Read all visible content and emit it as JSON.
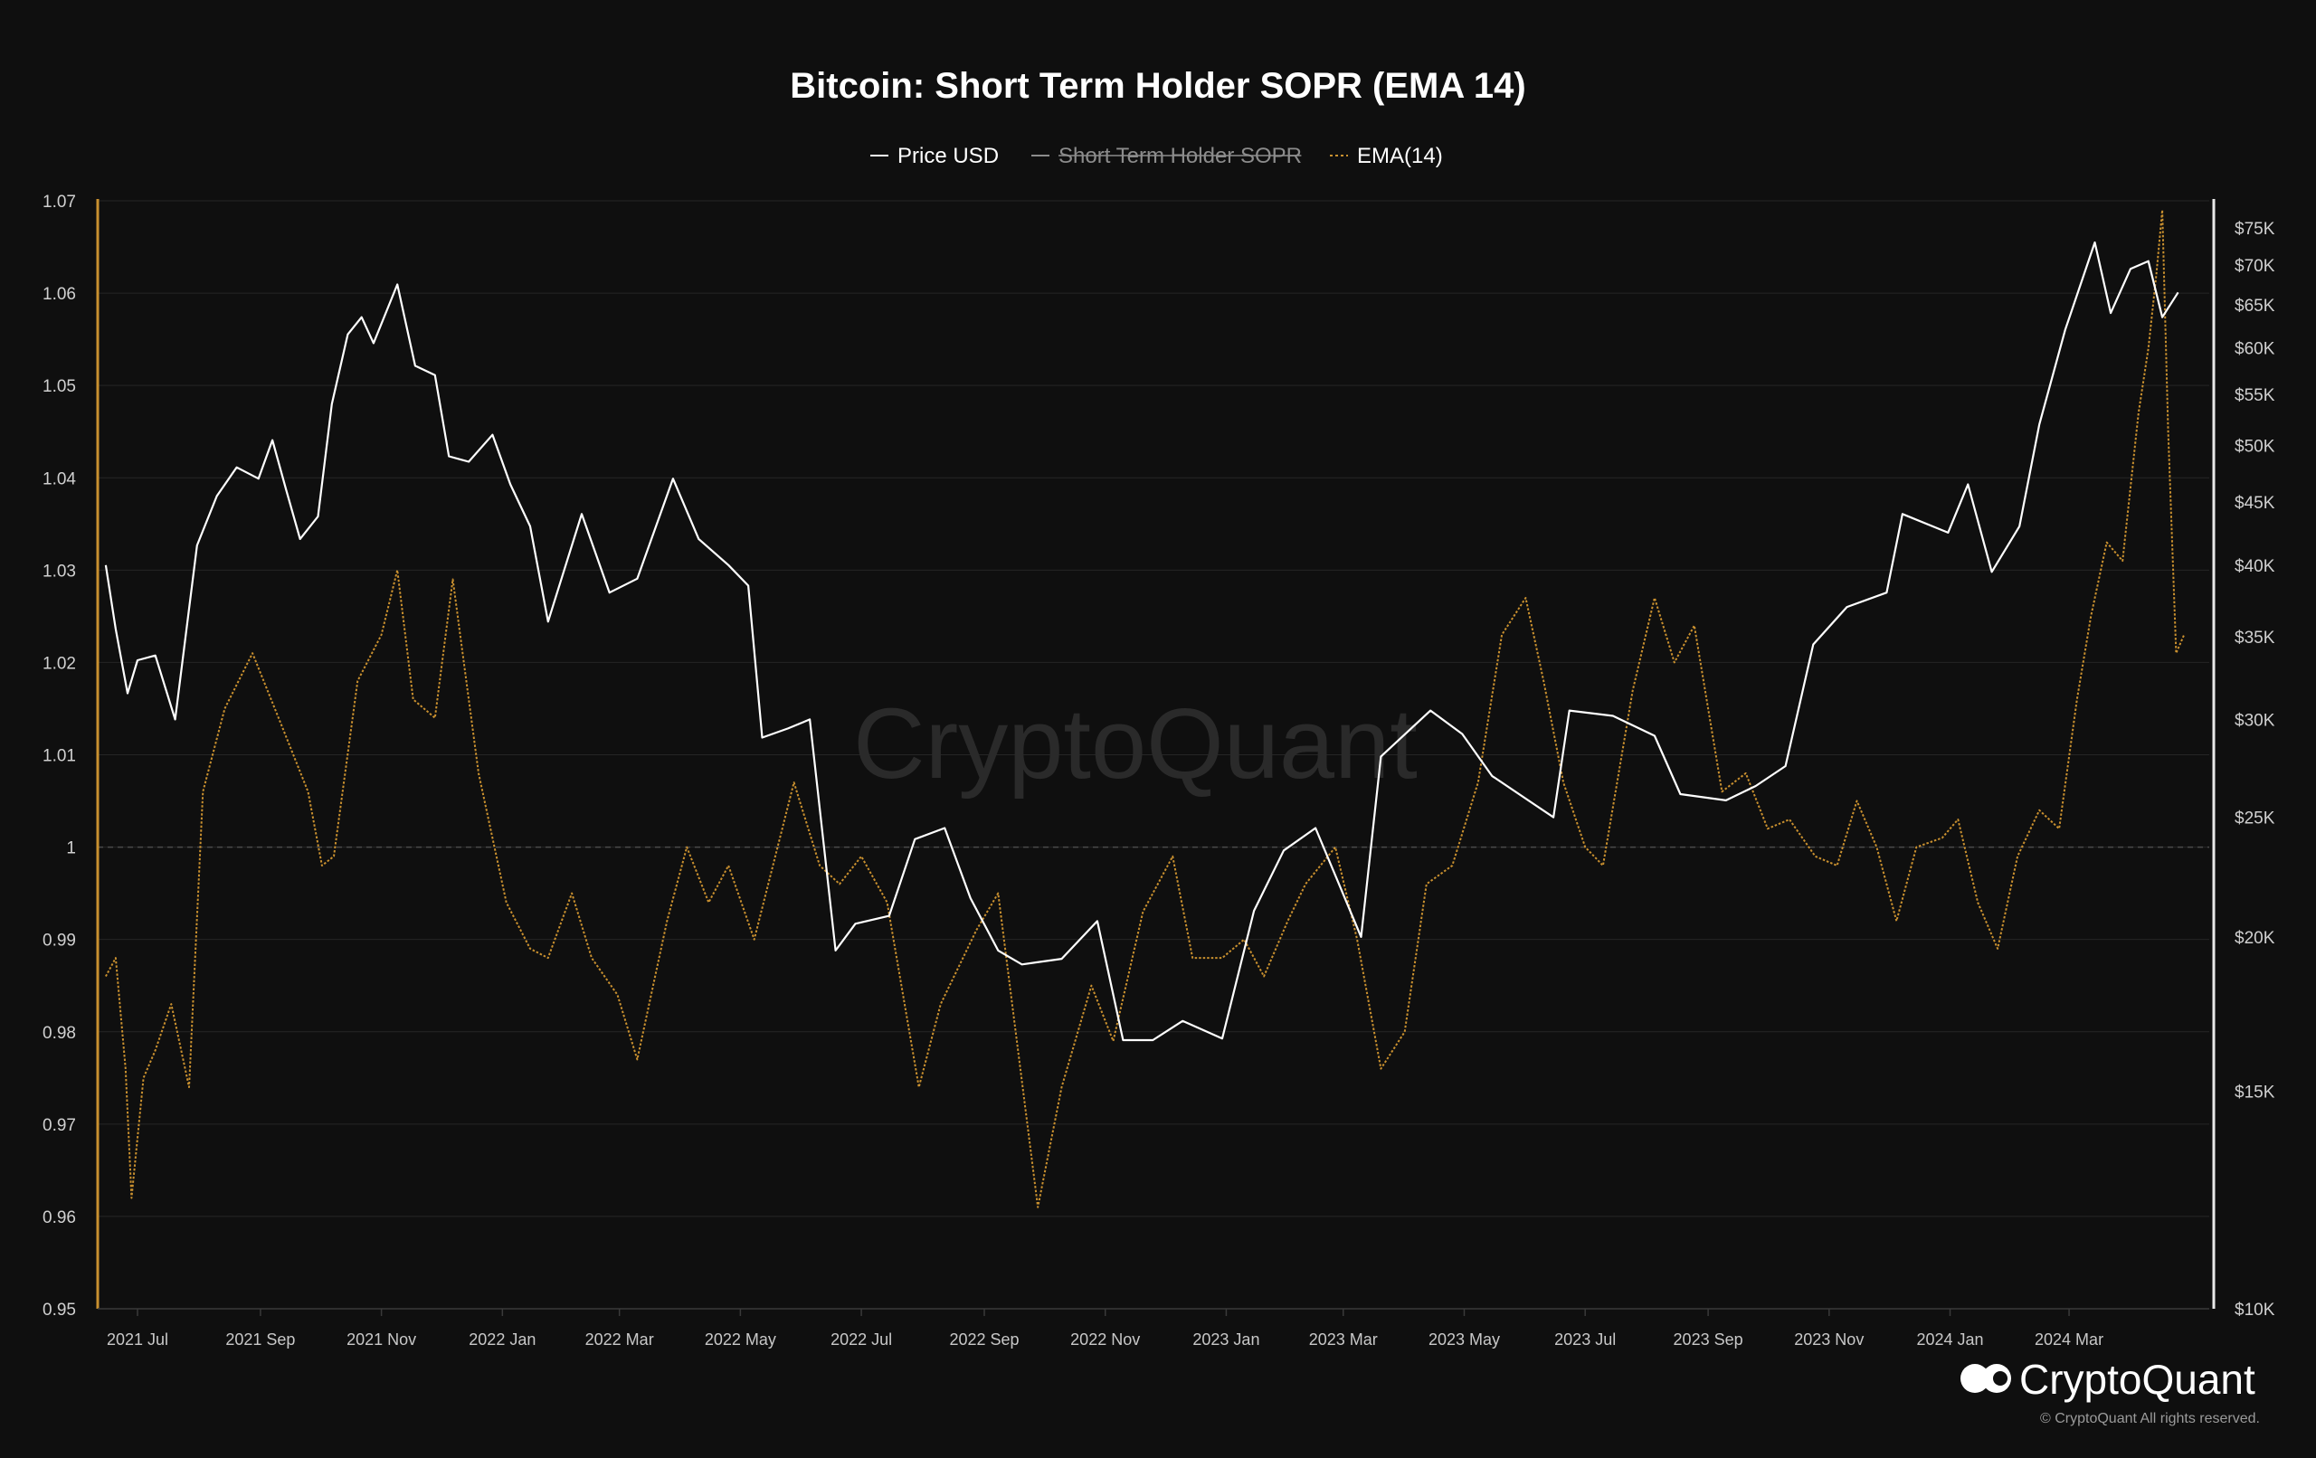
{
  "chart_data": {
    "type": "line",
    "title": "Bitcoin: Short Term Holder SOPR (EMA 14)",
    "legend": [
      {
        "name": "Price USD",
        "color": "#ffffff",
        "style": "solid",
        "disabled": false
      },
      {
        "name": "Short Term Holder SOPR",
        "color": "#8c8c8c",
        "style": "solid",
        "disabled": true
      },
      {
        "name": "EMA(14)",
        "color": "#c9902f",
        "style": "dotted",
        "disabled": false
      }
    ],
    "legend_position": "top-center",
    "grid": true,
    "x_ticks": [
      "2021 Jul",
      "2021 Sep",
      "2021 Nov",
      "2022 Jan",
      "2022 Mar",
      "2022 May",
      "2022 Jul",
      "2022 Sep",
      "2022 Nov",
      "2023 Jan",
      "2023 Mar",
      "2023 May",
      "2023 Jul",
      "2023 Sep",
      "2023 Nov",
      "2024 Jan",
      "2024 Mar"
    ],
    "y_left": {
      "label": "",
      "range": [
        0.95,
        1.07
      ],
      "ticks": [
        "1.07",
        "1.06",
        "1.05",
        "1.04",
        "1.03",
        "1.02",
        "1.01",
        "1",
        "0.99",
        "0.98",
        "0.97",
        "0.96",
        "0.95"
      ],
      "reference_line": 1
    },
    "y_right": {
      "label": "",
      "scale": "log",
      "range": [
        10000,
        75000
      ],
      "ticks": [
        "$75K",
        "$70K",
        "$65K",
        "$60K",
        "$55K",
        "$50K",
        "$45K",
        "$40K",
        "$35K",
        "$30K",
        "$25K",
        "$20K",
        "$15K",
        "$10K"
      ]
    },
    "series": [
      {
        "name": "Price USD",
        "axis": "right",
        "points": [
          [
            "2021-06-15",
            40000
          ],
          [
            "2021-06-20",
            35500
          ],
          [
            "2021-06-26",
            31500
          ],
          [
            "2021-07-01",
            33500
          ],
          [
            "2021-07-10",
            33800
          ],
          [
            "2021-07-20",
            30000
          ],
          [
            "2021-07-31",
            41500
          ],
          [
            "2021-08-10",
            45500
          ],
          [
            "2021-08-20",
            48000
          ],
          [
            "2021-08-31",
            47000
          ],
          [
            "2021-09-07",
            50500
          ],
          [
            "2021-09-14",
            46000
          ],
          [
            "2021-09-21",
            42000
          ],
          [
            "2021-09-30",
            43800
          ],
          [
            "2021-10-07",
            54000
          ],
          [
            "2021-10-15",
            61500
          ],
          [
            "2021-10-22",
            63500
          ],
          [
            "2021-10-28",
            60500
          ],
          [
            "2021-11-09",
            67500
          ],
          [
            "2021-11-18",
            58000
          ],
          [
            "2021-11-28",
            57000
          ],
          [
            "2021-12-05",
            49000
          ],
          [
            "2021-12-15",
            48500
          ],
          [
            "2021-12-27",
            51000
          ],
          [
            "2022-01-05",
            46500
          ],
          [
            "2022-01-15",
            43000
          ],
          [
            "2022-01-24",
            36000
          ],
          [
            "2022-02-10",
            44000
          ],
          [
            "2022-02-24",
            38000
          ],
          [
            "2022-03-10",
            39000
          ],
          [
            "2022-03-28",
            47000
          ],
          [
            "2022-04-10",
            42000
          ],
          [
            "2022-04-25",
            40000
          ],
          [
            "2022-05-05",
            38500
          ],
          [
            "2022-05-12",
            29000
          ],
          [
            "2022-05-25",
            29500
          ],
          [
            "2022-06-05",
            30000
          ],
          [
            "2022-06-18",
            19500
          ],
          [
            "2022-06-28",
            20500
          ],
          [
            "2022-07-15",
            20800
          ],
          [
            "2022-07-28",
            24000
          ],
          [
            "2022-08-12",
            24500
          ],
          [
            "2022-08-25",
            21500
          ],
          [
            "2022-09-08",
            19500
          ],
          [
            "2022-09-20",
            19000
          ],
          [
            "2022-10-10",
            19200
          ],
          [
            "2022-10-28",
            20600
          ],
          [
            "2022-11-10",
            16500
          ],
          [
            "2022-11-25",
            16500
          ],
          [
            "2022-12-10",
            17100
          ],
          [
            "2022-12-30",
            16550
          ],
          [
            "2023-01-15",
            21000
          ],
          [
            "2023-01-30",
            23500
          ],
          [
            "2023-02-15",
            24500
          ],
          [
            "2023-03-10",
            20000
          ],
          [
            "2023-03-20",
            28000
          ],
          [
            "2023-04-14",
            30500
          ],
          [
            "2023-04-30",
            29200
          ],
          [
            "2023-05-15",
            27000
          ],
          [
            "2023-06-15",
            25000
          ],
          [
            "2023-06-23",
            30500
          ],
          [
            "2023-07-15",
            30200
          ],
          [
            "2023-08-05",
            29100
          ],
          [
            "2023-08-18",
            26100
          ],
          [
            "2023-09-10",
            25800
          ],
          [
            "2023-09-25",
            26500
          ],
          [
            "2023-10-10",
            27500
          ],
          [
            "2023-10-24",
            34500
          ],
          [
            "2023-11-10",
            37000
          ],
          [
            "2023-11-30",
            38000
          ],
          [
            "2023-12-08",
            44000
          ],
          [
            "2023-12-31",
            42500
          ],
          [
            "2024-01-10",
            46500
          ],
          [
            "2024-01-22",
            39500
          ],
          [
            "2024-02-05",
            43000
          ],
          [
            "2024-02-15",
            52000
          ],
          [
            "2024-02-28",
            62000
          ],
          [
            "2024-03-14",
            73000
          ],
          [
            "2024-03-22",
            64000
          ],
          [
            "2024-04-01",
            69500
          ],
          [
            "2024-04-10",
            70500
          ],
          [
            "2024-04-17",
            63500
          ],
          [
            "2024-04-25",
            66500
          ]
        ]
      },
      {
        "name": "EMA(14)",
        "axis": "left",
        "points": [
          [
            "2021-06-15",
            0.986
          ],
          [
            "2021-06-20",
            0.988
          ],
          [
            "2021-06-25",
            0.976
          ],
          [
            "2021-06-28",
            0.962
          ],
          [
            "2021-07-04",
            0.975
          ],
          [
            "2021-07-10",
            0.978
          ],
          [
            "2021-07-18",
            0.983
          ],
          [
            "2021-07-27",
            0.974
          ],
          [
            "2021-08-03",
            1.006
          ],
          [
            "2021-08-14",
            1.015
          ],
          [
            "2021-08-28",
            1.021
          ],
          [
            "2021-09-12",
            1.013
          ],
          [
            "2021-09-25",
            1.006
          ],
          [
            "2021-10-02",
            0.998
          ],
          [
            "2021-10-08",
            0.999
          ],
          [
            "2021-10-20",
            1.018
          ],
          [
            "2021-11-01",
            1.023
          ],
          [
            "2021-11-09",
            1.03
          ],
          [
            "2021-11-17",
            1.016
          ],
          [
            "2021-11-28",
            1.014
          ],
          [
            "2021-12-07",
            1.029
          ],
          [
            "2021-12-20",
            1.008
          ],
          [
            "2022-01-03",
            0.994
          ],
          [
            "2022-01-15",
            0.989
          ],
          [
            "2022-01-24",
            0.988
          ],
          [
            "2022-02-05",
            0.995
          ],
          [
            "2022-02-15",
            0.988
          ],
          [
            "2022-02-28",
            0.984
          ],
          [
            "2022-03-10",
            0.977
          ],
          [
            "2022-03-25",
            0.992
          ],
          [
            "2022-04-04",
            1.0
          ],
          [
            "2022-04-15",
            0.994
          ],
          [
            "2022-04-25",
            0.998
          ],
          [
            "2022-05-08",
            0.99
          ],
          [
            "2022-05-28",
            1.007
          ],
          [
            "2022-06-10",
            0.998
          ],
          [
            "2022-06-20",
            0.996
          ],
          [
            "2022-07-01",
            0.999
          ],
          [
            "2022-07-14",
            0.994
          ],
          [
            "2022-07-30",
            0.974
          ],
          [
            "2022-08-10",
            0.983
          ],
          [
            "2022-08-28",
            0.991
          ],
          [
            "2022-09-08",
            0.995
          ],
          [
            "2022-09-28",
            0.961
          ],
          [
            "2022-10-10",
            0.974
          ],
          [
            "2022-10-25",
            0.985
          ],
          [
            "2022-11-05",
            0.979
          ],
          [
            "2022-11-20",
            0.993
          ],
          [
            "2022-12-05",
            0.999
          ],
          [
            "2022-12-15",
            0.988
          ],
          [
            "2022-12-30",
            0.988
          ],
          [
            "2023-01-10",
            0.99
          ],
          [
            "2023-01-20",
            0.986
          ],
          [
            "2023-02-01",
            0.992
          ],
          [
            "2023-02-10",
            0.996
          ],
          [
            "2023-02-25",
            1.0
          ],
          [
            "2023-03-08",
            0.99
          ],
          [
            "2023-03-20",
            0.976
          ],
          [
            "2023-04-01",
            0.98
          ],
          [
            "2023-04-12",
            0.996
          ],
          [
            "2023-04-25",
            0.998
          ],
          [
            "2023-05-08",
            1.007
          ],
          [
            "2023-05-20",
            1.023
          ],
          [
            "2023-06-01",
            1.027
          ],
          [
            "2023-06-10",
            1.018
          ],
          [
            "2023-06-20",
            1.007
          ],
          [
            "2023-07-01",
            1.0
          ],
          [
            "2023-07-10",
            0.998
          ],
          [
            "2023-07-25",
            1.017
          ],
          [
            "2023-08-05",
            1.027
          ],
          [
            "2023-08-15",
            1.02
          ],
          [
            "2023-08-25",
            1.024
          ],
          [
            "2023-09-08",
            1.006
          ],
          [
            "2023-09-20",
            1.008
          ],
          [
            "2023-10-01",
            1.002
          ],
          [
            "2023-10-12",
            1.003
          ],
          [
            "2023-10-25",
            0.999
          ],
          [
            "2023-11-05",
            0.998
          ],
          [
            "2023-11-15",
            1.005
          ],
          [
            "2023-11-25",
            1.0
          ],
          [
            "2023-12-05",
            0.992
          ],
          [
            "2023-12-15",
            1.0
          ],
          [
            "2023-12-28",
            1.001
          ],
          [
            "2024-01-05",
            1.003
          ],
          [
            "2024-01-15",
            0.994
          ],
          [
            "2024-01-25",
            0.989
          ],
          [
            "2024-02-04",
            0.999
          ],
          [
            "2024-02-15",
            1.004
          ],
          [
            "2024-02-25",
            1.002
          ],
          [
            "2024-03-05",
            1.016
          ],
          [
            "2024-03-12",
            1.025
          ],
          [
            "2024-03-20",
            1.033
          ],
          [
            "2024-03-28",
            1.031
          ],
          [
            "2024-04-05",
            1.047
          ],
          [
            "2024-04-10",
            1.054
          ],
          [
            "2024-04-14",
            1.062
          ],
          [
            "2024-04-17",
            1.069
          ],
          [
            "2024-04-20",
            1.045
          ],
          [
            "2024-04-24",
            1.021
          ],
          [
            "2024-04-28",
            1.023
          ]
        ]
      }
    ]
  },
  "watermark": "CryptoQuant",
  "brand": {
    "name": "CryptoQuant",
    "copyright": "© CryptoQuant All rights reserved."
  }
}
